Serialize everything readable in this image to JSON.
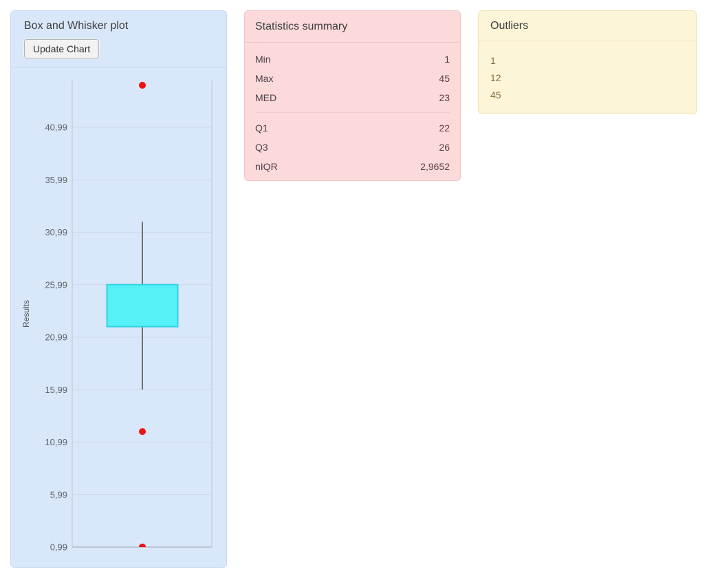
{
  "panels": {
    "chart": {
      "title": "Box and Whisker plot",
      "button_label": "Update Chart"
    },
    "stats": {
      "title": "Statistics summary",
      "rows_primary": [
        {
          "label": "Min",
          "value": "1"
        },
        {
          "label": "Max",
          "value": "45"
        },
        {
          "label": "MED",
          "value": "23"
        }
      ],
      "rows_secondary": [
        {
          "label": "Q1",
          "value": "22"
        },
        {
          "label": "Q3",
          "value": "26"
        },
        {
          "label": "nIQR",
          "value": "2,9652"
        }
      ]
    },
    "outliers": {
      "title": "Outliers",
      "values": [
        "1",
        "12",
        "45"
      ]
    }
  },
  "chart_data": {
    "type": "boxplot",
    "title": "Box and Whisker plot",
    "ylabel": "Results",
    "ylim": [
      0.99,
      45.45
    ],
    "grid": true,
    "yticks": [
      {
        "value": 0.99,
        "label": "0,99"
      },
      {
        "value": 5.99,
        "label": "5,99"
      },
      {
        "value": 10.99,
        "label": "10,99"
      },
      {
        "value": 15.99,
        "label": "15,99"
      },
      {
        "value": 20.99,
        "label": "20,99"
      },
      {
        "value": 25.99,
        "label": "25,99"
      },
      {
        "value": 30.99,
        "label": "30,99"
      },
      {
        "value": 35.99,
        "label": "35,99"
      },
      {
        "value": 40.99,
        "label": "40,99"
      }
    ],
    "series": [
      {
        "name": "Results",
        "min": 1,
        "max": 45,
        "median": 23,
        "q1": 22,
        "q3": 26,
        "whisker_low": 16,
        "whisker_high": 32,
        "outliers": [
          45,
          12,
          1
        ]
      }
    ],
    "colors": {
      "box_fill": "#55f1f7",
      "box_border": "#2ed4de",
      "whisker": "#6f6f6f",
      "outlier": "#ee1111",
      "grid": "#cbd7ec",
      "axis": "#b9c4d6",
      "axis_bottom": "#9fa6ae",
      "tick_text": "#5f6368",
      "label_text": "#55595f"
    }
  }
}
